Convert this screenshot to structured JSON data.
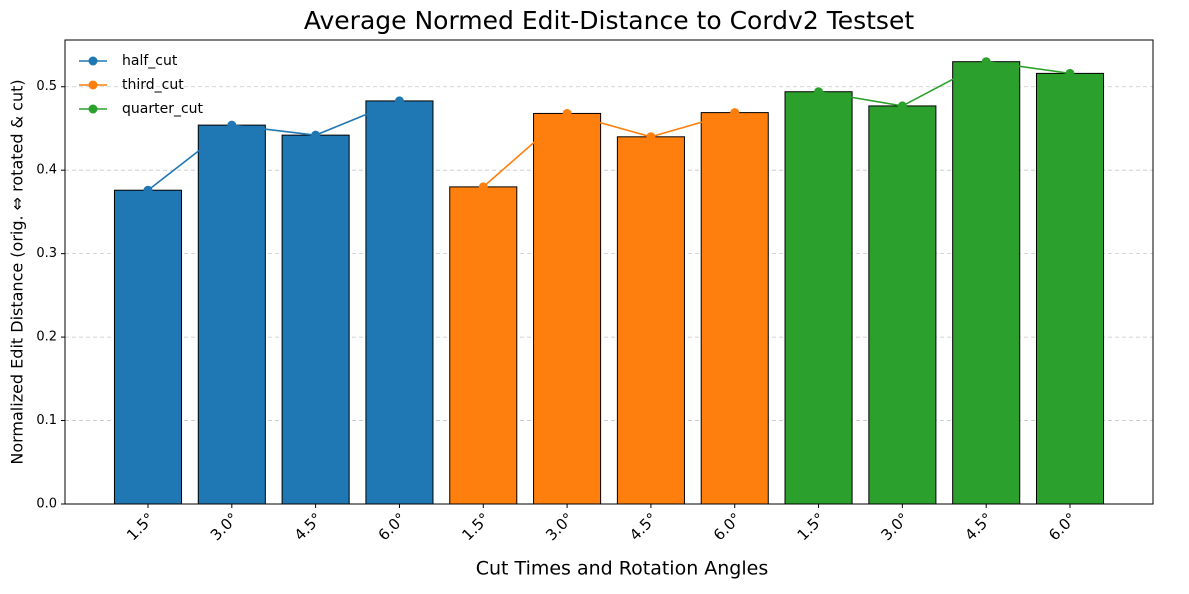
{
  "chart_data": {
    "type": "bar_line",
    "title": "Average Normed Edit-Distance to Cordv2 Testset",
    "x_label": "Cut Times and Rotation Angles",
    "y_label": "Normalized Edit Distance (orig. ⇔ rotated & cut)",
    "categories": [
      "1.5°",
      "3.0°",
      "4.5°",
      "6.0°",
      "1.5°",
      "3.0°",
      "4.5°",
      "6.0°",
      "1.5°",
      "3.0°",
      "4.5°",
      "6.0°"
    ],
    "series": [
      {
        "name": "half_cut",
        "color": "#1f77b4",
        "values": [
          0.376,
          0.454,
          0.442,
          0.483,
          null,
          null,
          null,
          null,
          null,
          null,
          null,
          null
        ]
      },
      {
        "name": "third_cut",
        "color": "#ff7f0e",
        "values": [
          null,
          null,
          null,
          null,
          0.38,
          0.468,
          0.44,
          0.469,
          null,
          null,
          null,
          null
        ]
      },
      {
        "name": "quarter_cut",
        "color": "#2ca02c",
        "values": [
          null,
          null,
          null,
          null,
          null,
          null,
          null,
          null,
          0.494,
          0.477,
          0.53,
          0.516
        ]
      }
    ],
    "ylim": [
      0,
      0.556
    ],
    "yticks": [
      {
        "value": 0,
        "label": "0.0"
      },
      0.1,
      0.2,
      0.3,
      0.4,
      0.5
    ],
    "grid": true,
    "legend": "upper left"
  }
}
